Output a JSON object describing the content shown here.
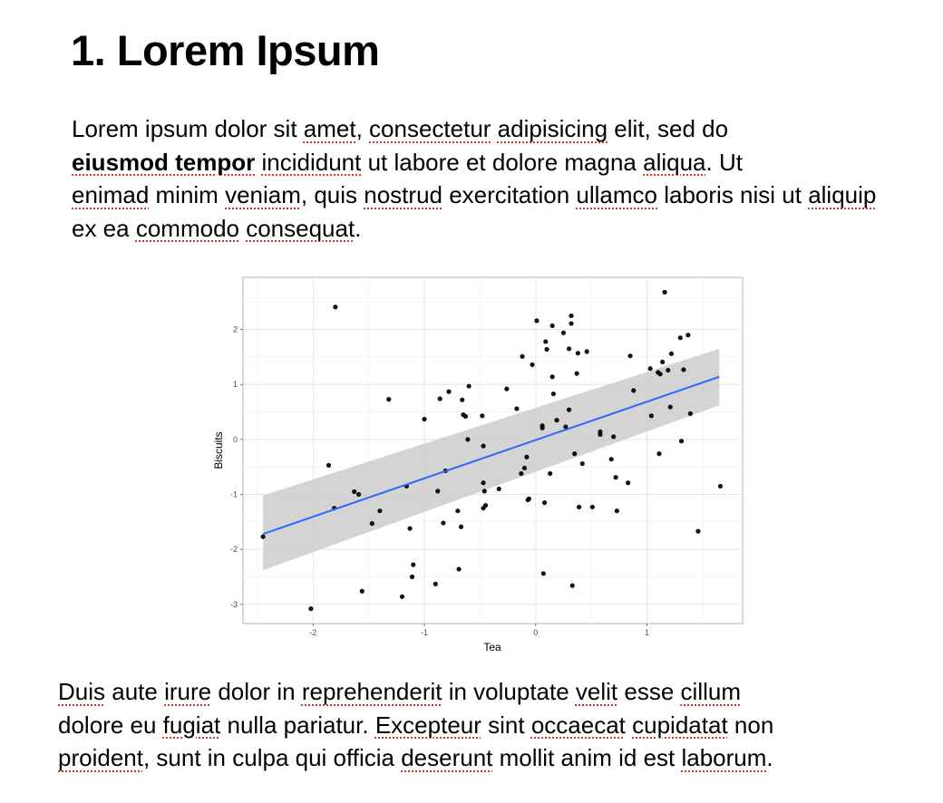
{
  "heading": "1. Lorem Ipsum",
  "para1": {
    "w1": "Lorem ipsum dolor sit ",
    "s1": "amet",
    "w2": ", ",
    "s2": "consectetur",
    "w3": " ",
    "s3": "adipisicing",
    "w4": " elit, sed do ",
    "b1": "eiusmod tempor",
    "w5": " ",
    "s4": "incididunt",
    "w6": " ut labore et dolore magna ",
    "s5": "aliqua",
    "w7": ". Ut ",
    "s6": "enimad",
    "w8": " minim ",
    "s7": "veniam",
    "w9": ", quis ",
    "s8": "nostrud",
    "w10": " exercitation ",
    "s9": "ullamco",
    "w11": " laboris nisi ut ",
    "s10": "aliquip",
    "w12": " ex ea ",
    "s11": "commodo",
    "w13": " ",
    "s12": "consequat",
    "w14": "."
  },
  "para2": {
    "s1": "Duis",
    "w1": " aute ",
    "s2": "irure",
    "w2": " dolor in ",
    "s3": "reprehenderit",
    "w3": " in voluptate ",
    "s4": "velit",
    "w4": " esse ",
    "s5": "cillum",
    "w5": " dolore eu ",
    "s6": "fugiat",
    "w6": " nulla pariatur. ",
    "s7": "Excepteur",
    "w7": " sint ",
    "s8": "occaecat",
    "w8": " ",
    "s9": "cupidatat",
    "w9": " non ",
    "s10": "proident",
    "w10": ", sunt in culpa qui officia ",
    "s11": "deserunt",
    "w11": " mollit anim id est ",
    "s12": "laborum",
    "w12": "."
  },
  "colors": {
    "spellcheck": "#d8382f",
    "fit_line": "#3366ff",
    "band": "#cccccc"
  },
  "chart_data": {
    "type": "scatter",
    "xlabel": "Tea",
    "ylabel": "Biscuits",
    "xticks": [
      "-2",
      "-1",
      "0",
      "1"
    ],
    "yticks": [
      "-3",
      "-2",
      "-1",
      "0",
      "1",
      "2"
    ],
    "xlim": [
      -2.63,
      1.86
    ],
    "ylim": [
      -3.35,
      2.95
    ],
    "grid": true,
    "smooth": {
      "method": "linear",
      "x": [
        -2.45,
        1.65
      ],
      "y": [
        -1.72,
        1.14
      ],
      "band_upper": [
        -1.02,
        1.65
      ],
      "band_lower": [
        -2.38,
        0.62
      ]
    },
    "points": [
      [
        -2.45,
        -1.77
      ],
      [
        -2.02,
        -3.08
      ],
      [
        -1.86,
        -0.47
      ],
      [
        -1.8,
        2.41
      ],
      [
        -1.81,
        -1.25
      ],
      [
        -1.63,
        -0.95
      ],
      [
        -1.59,
        -1.0
      ],
      [
        -1.56,
        -2.76
      ],
      [
        -1.47,
        -1.53
      ],
      [
        -1.4,
        -1.3
      ],
      [
        -1.32,
        0.73
      ],
      [
        -1.2,
        -2.86
      ],
      [
        -1.16,
        -0.85
      ],
      [
        -1.13,
        -1.62
      ],
      [
        -1.1,
        -2.28
      ],
      [
        -1.11,
        -2.5
      ],
      [
        -1.0,
        0.37
      ],
      [
        -0.9,
        -2.63
      ],
      [
        -0.88,
        -0.94
      ],
      [
        -0.86,
        0.74
      ],
      [
        -0.83,
        -1.52
      ],
      [
        -0.81,
        -0.57
      ],
      [
        -0.78,
        0.87
      ],
      [
        -0.7,
        -1.3
      ],
      [
        -0.69,
        -2.36
      ],
      [
        -0.66,
        0.72
      ],
      [
        -0.67,
        -1.59
      ],
      [
        -0.65,
        0.45
      ],
      [
        -0.63,
        0.42
      ],
      [
        -0.6,
        0.97
      ],
      [
        -0.61,
        0.0
      ],
      [
        -0.48,
        0.43
      ],
      [
        -0.47,
        -0.12
      ],
      [
        -0.47,
        -0.79
      ],
      [
        -0.47,
        -1.25
      ],
      [
        -0.46,
        -0.94
      ],
      [
        -0.45,
        -1.2
      ],
      [
        -0.33,
        -0.9
      ],
      [
        -0.26,
        0.92
      ],
      [
        -0.17,
        0.56
      ],
      [
        -0.13,
        -0.62
      ],
      [
        -0.12,
        1.51
      ],
      [
        -0.1,
        -0.52
      ],
      [
        -0.08,
        -0.32
      ],
      [
        -0.07,
        -1.1
      ],
      [
        -0.06,
        -1.08
      ],
      [
        -0.03,
        1.36
      ],
      [
        0.01,
        2.16
      ],
      [
        0.06,
        0.25
      ],
      [
        0.06,
        0.21
      ],
      [
        0.07,
        -2.44
      ],
      [
        0.08,
        -1.15
      ],
      [
        0.09,
        1.78
      ],
      [
        0.1,
        1.64
      ],
      [
        0.13,
        -0.62
      ],
      [
        0.15,
        2.07
      ],
      [
        0.15,
        1.14
      ],
      [
        0.16,
        0.83
      ],
      [
        0.19,
        0.35
      ],
      [
        0.25,
        1.94
      ],
      [
        0.27,
        0.23
      ],
      [
        0.3,
        0.54
      ],
      [
        0.3,
        1.65
      ],
      [
        0.32,
        2.11
      ],
      [
        0.32,
        2.25
      ],
      [
        0.33,
        -2.66
      ],
      [
        0.35,
        -0.26
      ],
      [
        0.37,
        1.2
      ],
      [
        0.38,
        1.57
      ],
      [
        0.39,
        -1.23
      ],
      [
        0.42,
        -0.44
      ],
      [
        0.46,
        1.6
      ],
      [
        0.51,
        -1.23
      ],
      [
        0.58,
        0.14
      ],
      [
        0.58,
        0.09
      ],
      [
        0.68,
        -0.36
      ],
      [
        0.7,
        0.05
      ],
      [
        0.72,
        -0.69
      ],
      [
        0.73,
        -1.3
      ],
      [
        0.83,
        -0.79
      ],
      [
        0.85,
        1.52
      ],
      [
        0.88,
        0.89
      ],
      [
        1.03,
        1.29
      ],
      [
        1.04,
        0.43
      ],
      [
        1.1,
        1.22
      ],
      [
        1.11,
        -0.26
      ],
      [
        1.12,
        1.19
      ],
      [
        1.14,
        1.41
      ],
      [
        1.16,
        2.68
      ],
      [
        1.19,
        1.26
      ],
      [
        1.21,
        0.59
      ],
      [
        1.22,
        1.56
      ],
      [
        1.3,
        1.85
      ],
      [
        1.31,
        -0.03
      ],
      [
        1.33,
        1.27
      ],
      [
        1.37,
        1.9
      ],
      [
        1.39,
        0.47
      ],
      [
        1.46,
        -1.67
      ],
      [
        1.66,
        -0.85
      ]
    ]
  }
}
